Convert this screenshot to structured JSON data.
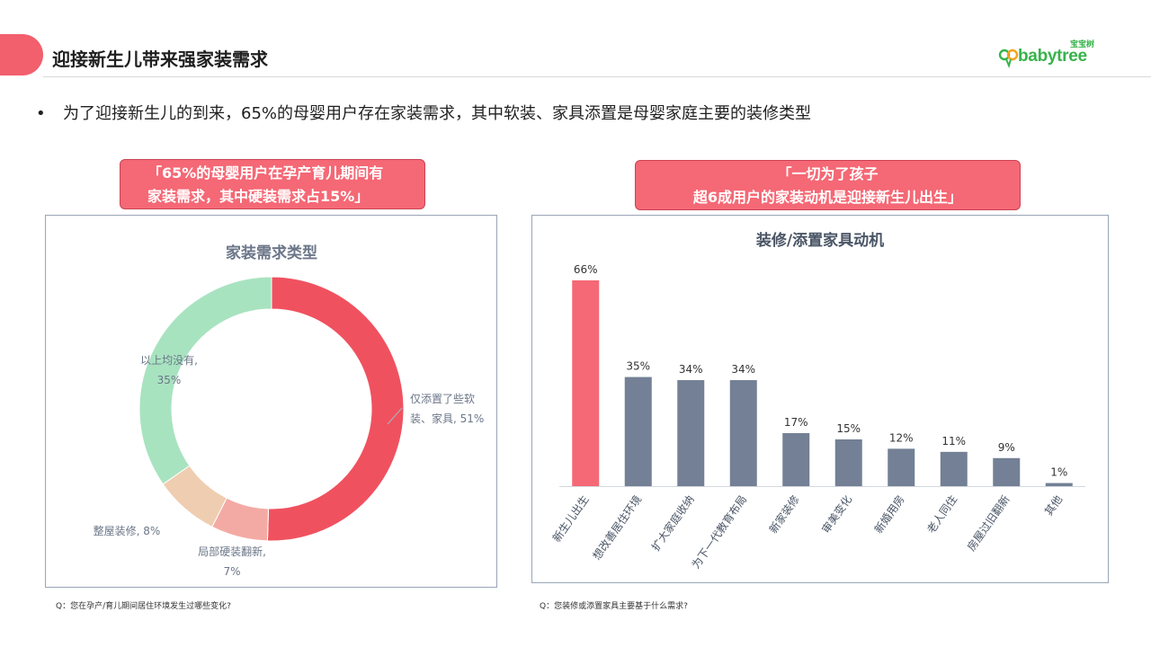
{
  "header": {
    "title": "迎接新生儿带来强家装需求",
    "logo_text": "babytree",
    "logo_sub": "宝宝树"
  },
  "bullet": {
    "text": "为了迎接新生儿的到来，65%的母婴用户存在家装需求，其中软装、家具添置是母婴家庭主要的装修类型"
  },
  "callouts": {
    "left": [
      "「65%的母婴用户在孕产育儿期间有",
      "家装需求，其中硬装需求占15%」"
    ],
    "right": [
      "「一切为了孩子",
      "超6成用户的家装动机是迎接新生儿出生」"
    ]
  },
  "colors": {
    "accent": "#f25f6d",
    "bar_highlight": "#f56875",
    "bar_default": "#738095",
    "donut": [
      "#f0515f",
      "#f4aaa4",
      "#efcdb0",
      "#a8e3c0"
    ]
  },
  "chart_data": [
    {
      "type": "pie",
      "title": "家装需求类型",
      "donut": true,
      "categories": [
        "仅添置了些软装、家具",
        "局部硬装翻新",
        "整屋装修",
        "以上均没有"
      ],
      "values": [
        51,
        7,
        8,
        35
      ],
      "data_labels": [
        [
          "仅添置了些软",
          "装、家具, 51%"
        ],
        [
          "局部硬装翻新,",
          "7%"
        ],
        [
          "整屋装修, 8%"
        ],
        [
          "以上均没有,",
          "35%"
        ]
      ]
    },
    {
      "type": "bar",
      "title": "装修/添置家具动机",
      "categories": [
        "新生儿出生",
        "想改善居住环境",
        "扩大家庭收纳",
        "为下一代教育布局",
        "新家装修",
        "审美变化",
        "新婚用房",
        "老人同住",
        "房屋过旧翻新",
        "其他"
      ],
      "values": [
        66,
        35,
        34,
        34,
        17,
        15,
        12,
        11,
        9,
        1
      ],
      "data_labels": [
        "66%",
        "35%",
        "34%",
        "34%",
        "17%",
        "15%",
        "12%",
        "11%",
        "9%",
        "1%"
      ],
      "highlight_index": 0
    }
  ],
  "questions": {
    "left": "Q：您在孕产/育儿期间居住环境发生过哪些变化?",
    "right": "Q：您装修或添置家具主要基于什么需求?"
  }
}
